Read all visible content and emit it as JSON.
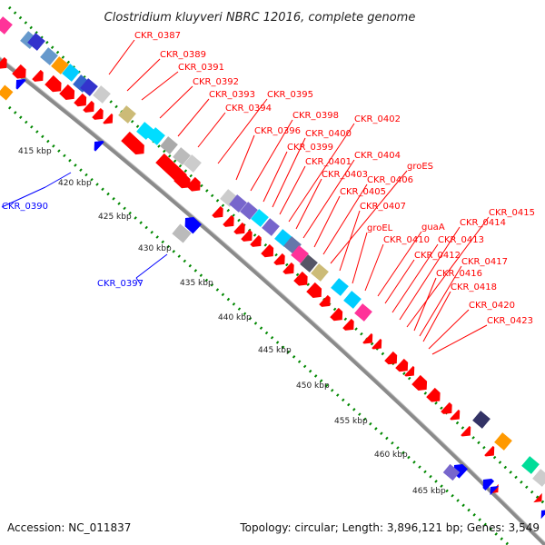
{
  "title": "Clostridium kluyveri NBRC 12016, complete genome",
  "footer": {
    "accession": "Accession: NC_011837",
    "summary": "Topology: circular; Length: 3,896,121 bp; Genes: 3,549"
  },
  "colors": {
    "forward_gene": "#ff0000",
    "reverse_gene": "#0000ff",
    "backbone": "#888888",
    "ticks": "#008800"
  },
  "ticks": [
    "415 kbp",
    "420 kbp",
    "425 kbp",
    "430 kbp",
    "435 kbp",
    "440 kbp",
    "445 kbp",
    "450 kbp",
    "455 kbp",
    "460 kbp",
    "465 kbp"
  ],
  "forward_labels": [
    "CKR_0387",
    "CKR_0389",
    "CKR_0391",
    "CKR_0392",
    "CKR_0393",
    "CKR_0394",
    "CKR_0395",
    "CKR_0396",
    "CKR_0398",
    "CKR_0399",
    "CKR_0400",
    "CKR_0401",
    "CKR_0402",
    "CKR_0403",
    "CKR_0404",
    "CKR_0405",
    "CKR_0406",
    "groES",
    "CKR_0407",
    "groEL",
    "guaA",
    "CKR_0410",
    "CKR_0412",
    "CKR_0413",
    "CKR_0414",
    "CKR_0415",
    "CKR_0416",
    "CKR_0417",
    "CKR_0418",
    "CKR_0420",
    "CKR_0423"
  ],
  "reverse_labels": [
    "CKR_0390",
    "CKR_0397"
  ]
}
